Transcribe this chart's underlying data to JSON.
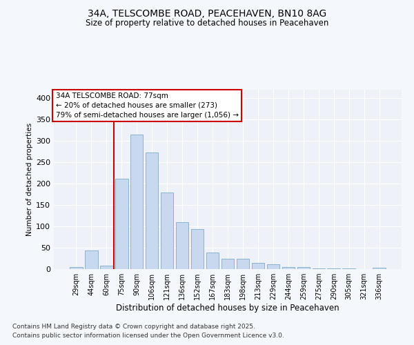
{
  "title1": "34A, TELSCOMBE ROAD, PEACEHAVEN, BN10 8AG",
  "title2": "Size of property relative to detached houses in Peacehaven",
  "xlabel": "Distribution of detached houses by size in Peacehaven",
  "ylabel": "Number of detached properties",
  "categories": [
    "29sqm",
    "44sqm",
    "60sqm",
    "75sqm",
    "90sqm",
    "106sqm",
    "121sqm",
    "136sqm",
    "152sqm",
    "167sqm",
    "183sqm",
    "198sqm",
    "213sqm",
    "229sqm",
    "244sqm",
    "259sqm",
    "275sqm",
    "290sqm",
    "305sqm",
    "321sqm",
    "336sqm"
  ],
  "values": [
    5,
    43,
    8,
    211,
    315,
    273,
    180,
    110,
    93,
    38,
    24,
    24,
    15,
    12,
    5,
    5,
    2,
    1,
    1,
    0,
    4
  ],
  "bar_color": "#c8d8ee",
  "bar_edge_color": "#7aabcc",
  "annotation_title": "34A TELSCOMBE ROAD: 77sqm",
  "annotation_line1": "← 20% of detached houses are smaller (273)",
  "annotation_line2": "79% of semi-detached houses are larger (1,056) →",
  "annotation_box_color": "#ffffff",
  "annotation_box_edge": "#cc0000",
  "vline_color": "#cc0000",
  "vline_x_index": 3,
  "ylim": [
    0,
    420
  ],
  "yticks": [
    0,
    50,
    100,
    150,
    200,
    250,
    300,
    350,
    400
  ],
  "footnote1": "Contains HM Land Registry data © Crown copyright and database right 2025.",
  "footnote2": "Contains public sector information licensed under the Open Government Licence v3.0.",
  "bg_color": "#f4f7fb",
  "plot_bg_color": "#eef2f8",
  "grid_color": "#ffffff"
}
